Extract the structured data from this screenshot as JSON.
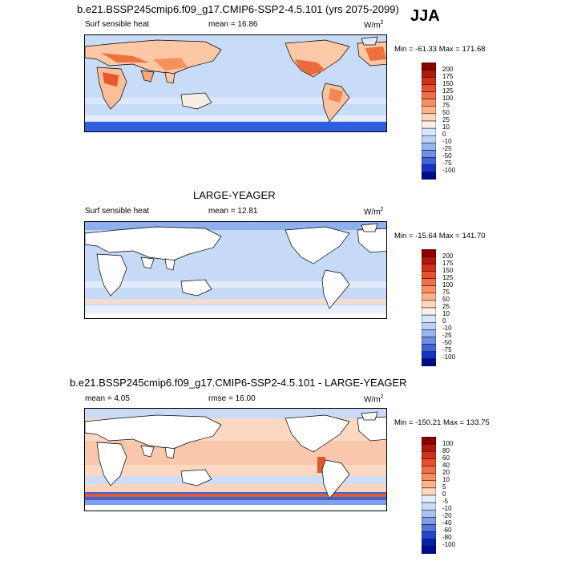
{
  "season_label": "JJA",
  "unit_base": "W/m",
  "unit_exp": "2",
  "panels": [
    {
      "title": "b.e21.BSSP245cmip6.f09_g17.CMIP6-SSP2-4.5.101 (yrs 2075-2099)",
      "variable": "Surf sensible heat",
      "stat": "mean =  16.86",
      "minmax": "Min = -61.33 Max = 171.68",
      "ticks": [
        "200",
        "175",
        "150",
        "125",
        "100",
        "75",
        "50",
        "25",
        "10",
        "0",
        "-10",
        "-25",
        "-50",
        "-75",
        "-100"
      ],
      "colors": [
        "#8b0000",
        "#b2170e",
        "#d1301a",
        "#e6502c",
        "#f26e46",
        "#f88e64",
        "#fcb38c",
        "#fdd8bd",
        "#f7f1e8",
        "#d7e6f9",
        "#bcd2f6",
        "#98b5ef",
        "#6f8ee6",
        "#3f63d8",
        "#1733c4",
        "#000c8c"
      ],
      "map_land": "warm",
      "fill_color": "#c8dcf7"
    },
    {
      "title": "LARGE-YEAGER",
      "variable": "Surf sensible heat",
      "stat": "mean =  12.81",
      "minmax": "Min = -15.64 Max = 141.70",
      "ticks": [
        "200",
        "175",
        "150",
        "125",
        "100",
        "75",
        "50",
        "25",
        "10",
        "0",
        "-10",
        "-25",
        "-50",
        "-75",
        "-100"
      ],
      "colors": [
        "#8b0000",
        "#b2170e",
        "#d1301a",
        "#e6502c",
        "#f26e46",
        "#f88e64",
        "#fcb38c",
        "#fdd8bd",
        "#f7f1e8",
        "#d7e6f9",
        "#bcd2f6",
        "#98b5ef",
        "#6f8ee6",
        "#3f63d8",
        "#1733c4",
        "#000c8c"
      ],
      "map_land": "white",
      "fill_color": "#c6d9f6"
    },
    {
      "title": "b.e21.BSSP245cmip6.f09_g17.CMIP6-SSP2-4.5.101 - LARGE-YEAGER",
      "variable": "mean =   4.05",
      "stat": "rmse =  16.00",
      "minmax": "Min = -150.21 Max = 133.75",
      "ticks": [
        "100",
        "80",
        "60",
        "40",
        "20",
        "10",
        "5",
        "0",
        "-5",
        "-10",
        "-20",
        "-40",
        "-60",
        "-80",
        "-100"
      ],
      "colors": [
        "#8b0000",
        "#b2170e",
        "#d1301a",
        "#e6502c",
        "#f26e46",
        "#f88e64",
        "#fcb38c",
        "#fdd8bd",
        "#e4eefb",
        "#c9dbf8",
        "#a8c2f2",
        "#7f9de9",
        "#5075dd",
        "#2448cc",
        "#0b20aa",
        "#000c8c"
      ],
      "map_land": "white",
      "fill_color": "#fbd8c2"
    }
  ]
}
